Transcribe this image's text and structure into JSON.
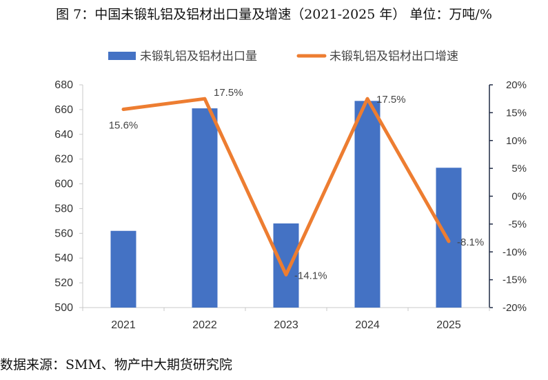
{
  "title": "图 7：中国未锻轧铝及铝材出口量及增速（2021-2025 年）  单位：万吨/%",
  "source": "数据来源：SMM、物产中大期货研究院",
  "chart_data": {
    "type": "bar",
    "categories": [
      "2021",
      "2022",
      "2023",
      "2024",
      "2025"
    ],
    "series": [
      {
        "name": "未锻轧铝及铝材出口量",
        "type": "bar",
        "axis": "left",
        "color": "#4472C4",
        "values": [
          562,
          661,
          568,
          667,
          613
        ]
      },
      {
        "name": "未锻轧铝及铝材出口增速",
        "type": "line",
        "axis": "right",
        "color": "#ED7D31",
        "values": [
          15.6,
          17.5,
          -14.1,
          17.5,
          -8.1
        ],
        "labels": [
          "15.6%",
          "17.5%",
          "-14.1%",
          "17.5%",
          "-8.1%"
        ]
      }
    ],
    "y_left": {
      "ylim": [
        500,
        680
      ],
      "ticks": [
        "500",
        "520",
        "540",
        "560",
        "580",
        "600",
        "620",
        "640",
        "660",
        "680"
      ]
    },
    "y_right": {
      "ylim": [
        -20,
        20
      ],
      "ticks": [
        "-20%",
        "-15%",
        "-10%",
        "-5%",
        "0%",
        "5%",
        "10%",
        "15%",
        "20%"
      ]
    },
    "legend": "top",
    "grid": false
  }
}
